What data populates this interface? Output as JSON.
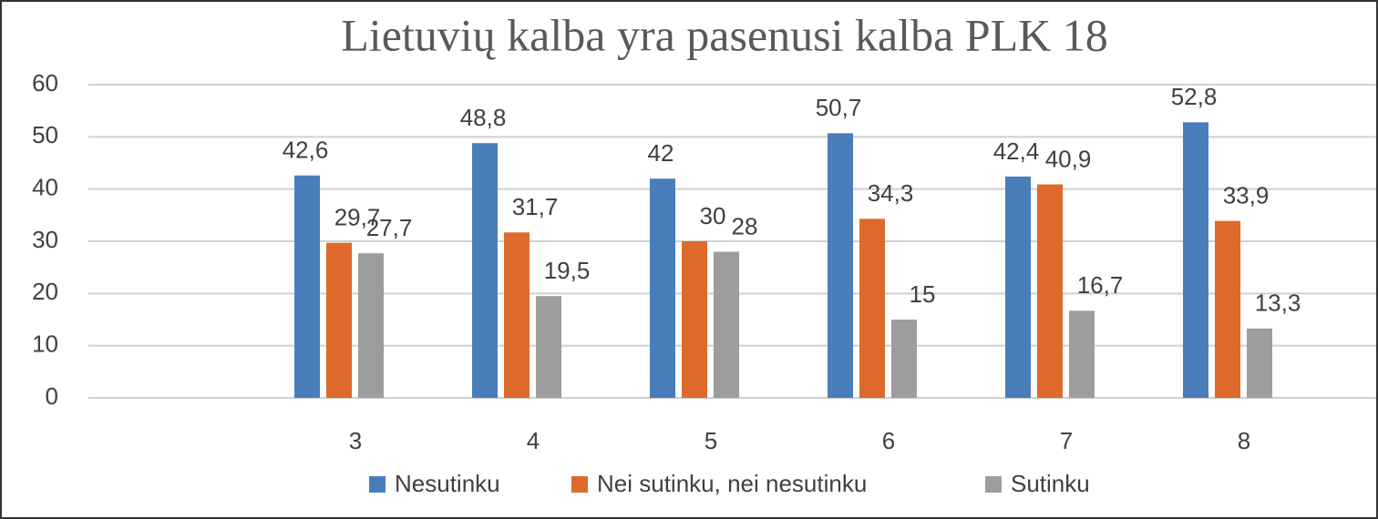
{
  "chart_data": {
    "type": "bar",
    "title": "Lietuvių kalba yra pasenusi kalba PLK 18",
    "categories": [
      null,
      "3",
      "4",
      "5",
      "6",
      "7",
      "8"
    ],
    "series": [
      {
        "name": "Nesutinku",
        "color": "#4a7ebb",
        "values": [
          null,
          42.6,
          48.8,
          42,
          50.7,
          42.4,
          52.8
        ],
        "value_labels": [
          null,
          "42,6",
          "48,8",
          "42",
          "50,7",
          "42,4",
          "52,8"
        ]
      },
      {
        "name": "Nei sutinku, nei nesutinku",
        "color": "#dd6a2b",
        "values": [
          null,
          29.7,
          31.7,
          30,
          34.3,
          40.9,
          33.9
        ],
        "value_labels": [
          null,
          "29,7",
          "31,7",
          "30",
          "34,3",
          "40,9",
          "33,9"
        ]
      },
      {
        "name": "Sutinku",
        "color": "#9d9d9d",
        "values": [
          null,
          27.7,
          19.5,
          28,
          15,
          16.7,
          13.3
        ],
        "value_labels": [
          null,
          "27,7",
          "19,5",
          "28",
          "15",
          "16,7",
          "13,3"
        ]
      }
    ],
    "ylim": [
      0,
      60
    ],
    "yticks": [
      0,
      10,
      20,
      30,
      40,
      50,
      60
    ],
    "grid": true,
    "legend": "bottom"
  }
}
